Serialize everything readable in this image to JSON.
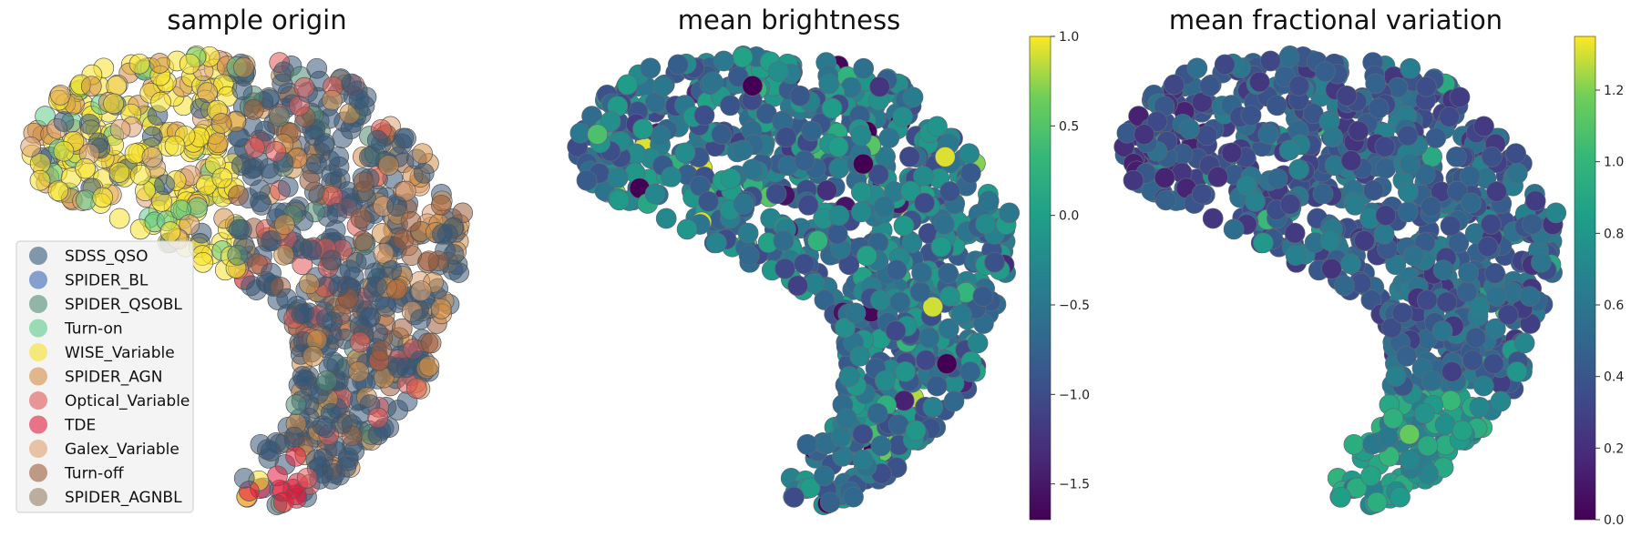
{
  "chart_data": [
    {
      "type": "scatter",
      "title": "sample origin",
      "legend_placement": "lower-left",
      "legend": [
        {
          "name": "SDSS_QSO",
          "color": "#345676"
        },
        {
          "name": "SPIDER_BL",
          "color": "#3a68b5"
        },
        {
          "name": "SPIDER_QSOBL",
          "color": "#4e8a72"
        },
        {
          "name": "Turn-on",
          "color": "#5ccc88"
        },
        {
          "name": "WISE_Variable",
          "color": "#f7e12c"
        },
        {
          "name": "SPIDER_AGN",
          "color": "#d28e45"
        },
        {
          "name": "Optical_Variable",
          "color": "#e05555"
        },
        {
          "name": "TDE",
          "color": "#e01b3c"
        },
        {
          "name": "Galex_Variable",
          "color": "#dea070"
        },
        {
          "name": "Turn-off",
          "color": "#9c5b3a"
        },
        {
          "name": "SPIDER_AGNBL",
          "color": "#957f66"
        }
      ]
    },
    {
      "type": "scatter",
      "title": "mean brightness",
      "colormap": "viridis",
      "colorbar": {
        "min": -1.7,
        "max": 1.0,
        "ticks": [
          "1.0",
          "0.5",
          "0.0",
          "−0.5",
          "−1.0",
          "−1.5"
        ],
        "tick_values": [
          1.0,
          0.5,
          0.0,
          -0.5,
          -1.0,
          -1.5
        ]
      }
    },
    {
      "type": "scatter",
      "title": "mean fractional variation",
      "colormap": "viridis",
      "colorbar": {
        "min": 0.0,
        "max": 1.35,
        "ticks": [
          "1.2",
          "1.0",
          "0.8",
          "0.6",
          "0.4",
          "0.2",
          "0.0"
        ],
        "tick_values": [
          1.2,
          1.0,
          0.8,
          0.6,
          0.4,
          0.2,
          0.0
        ]
      }
    }
  ]
}
